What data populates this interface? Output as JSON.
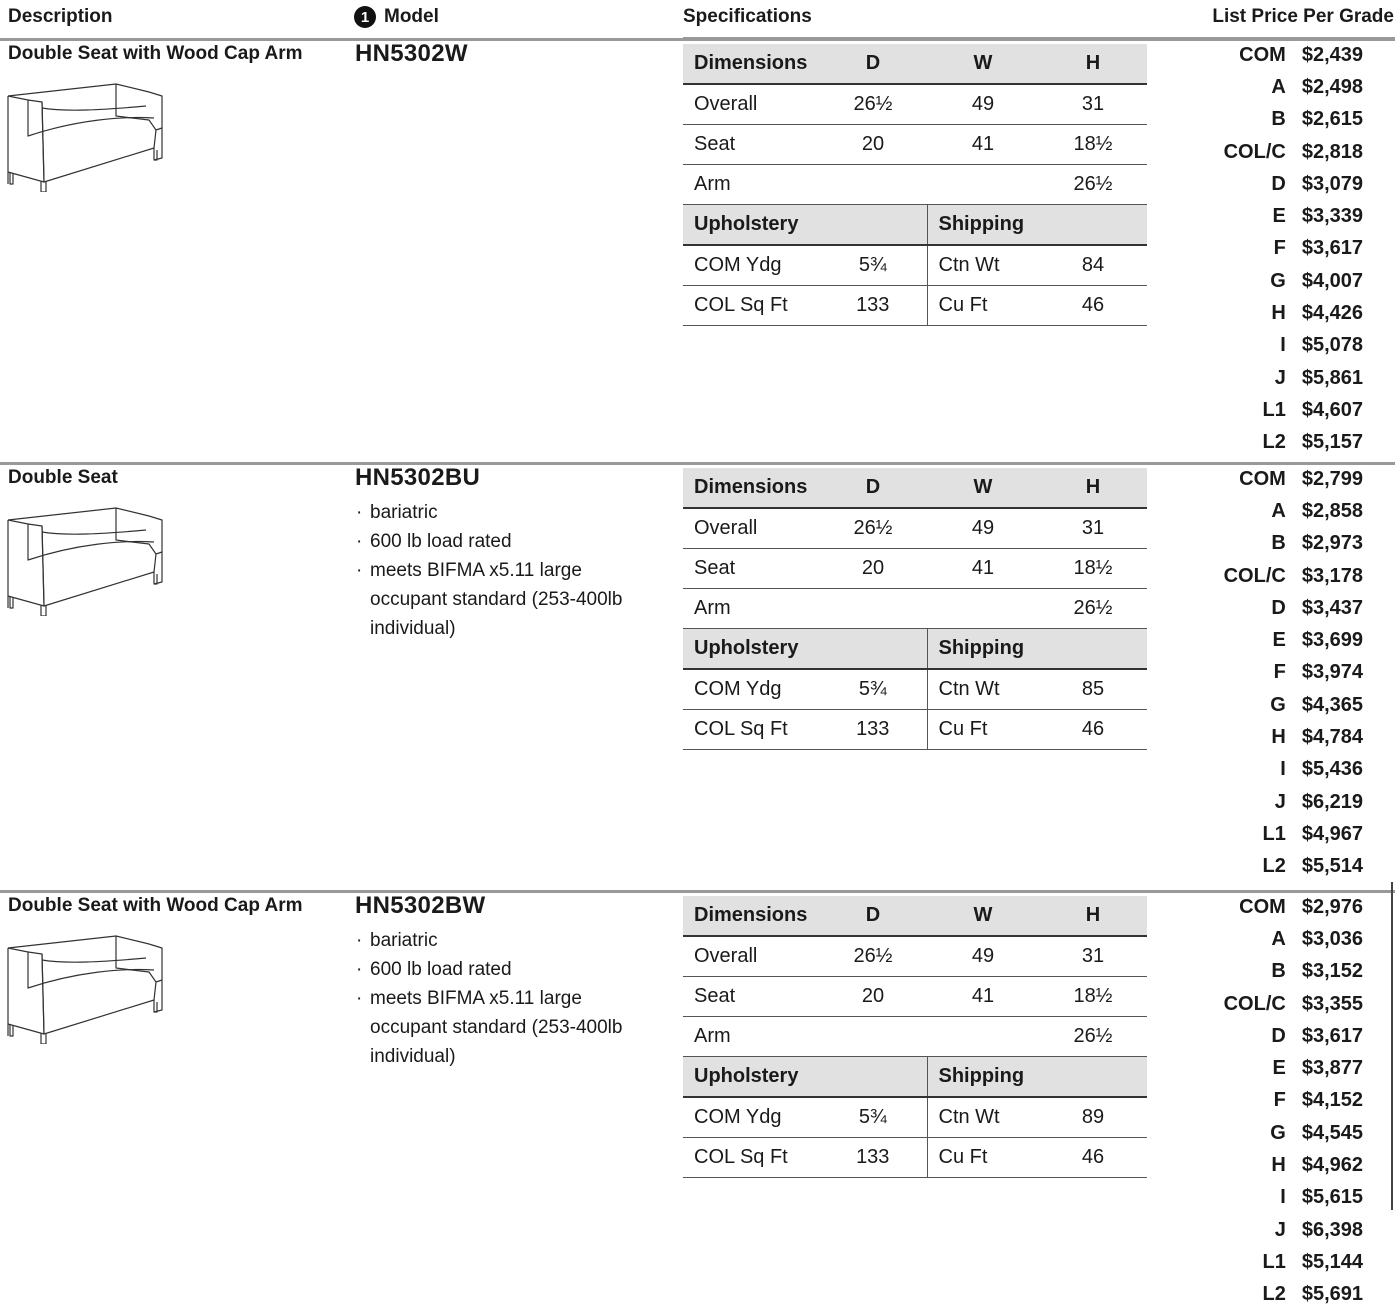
{
  "header": {
    "description": "Description",
    "model_badge": "1",
    "model": "Model",
    "specifications": "Specifications",
    "list_price": "List Price Per Grade"
  },
  "labels": {
    "dimensions": "Dimensions",
    "D": "D",
    "W": "W",
    "H": "H",
    "overall": "Overall",
    "seat": "Seat",
    "arm": "Arm",
    "upholstery": "Upholstery",
    "shipping": "Shipping",
    "com_ydg": "COM Ydg",
    "col_sqft": "COL Sq Ft",
    "ctn_wt": "Ctn Wt",
    "cu_ft": "Cu Ft"
  },
  "products": [
    {
      "description": "Double Seat with Wood Cap Arm",
      "model": "HN5302W",
      "notes": [],
      "overall": {
        "D": "26½",
        "W": "49",
        "H": "31"
      },
      "seat": {
        "D": "20",
        "W": "41",
        "H": "18½"
      },
      "arm": {
        "H": "26½"
      },
      "com_ydg": "5¾",
      "col_sqft": "133",
      "ctn_wt": "84",
      "cu_ft": "46",
      "prices": [
        {
          "grade": "COM",
          "price": "$2,439"
        },
        {
          "grade": "A",
          "price": "$2,498"
        },
        {
          "grade": "B",
          "price": "$2,615"
        },
        {
          "grade": "COL/C",
          "price": "$2,818"
        },
        {
          "grade": "D",
          "price": "$3,079"
        },
        {
          "grade": "E",
          "price": "$3,339"
        },
        {
          "grade": "F",
          "price": "$3,617"
        },
        {
          "grade": "G",
          "price": "$4,007"
        },
        {
          "grade": "H",
          "price": "$4,426"
        },
        {
          "grade": "I",
          "price": "$5,078"
        },
        {
          "grade": "J",
          "price": "$5,861"
        },
        {
          "grade": "L1",
          "price": "$4,607"
        },
        {
          "grade": "L2",
          "price": "$5,157"
        }
      ]
    },
    {
      "description": "Double Seat",
      "model": "HN5302BU",
      "notes": [
        "bariatric",
        "600 lb load rated",
        "meets BIFMA x5.11 large occupant standard (253-400lb individual)"
      ],
      "overall": {
        "D": "26½",
        "W": "49",
        "H": "31"
      },
      "seat": {
        "D": "20",
        "W": "41",
        "H": "18½"
      },
      "arm": {
        "H": "26½"
      },
      "com_ydg": "5¾",
      "col_sqft": "133",
      "ctn_wt": "85",
      "cu_ft": "46",
      "prices": [
        {
          "grade": "COM",
          "price": "$2,799"
        },
        {
          "grade": "A",
          "price": "$2,858"
        },
        {
          "grade": "B",
          "price": "$2,973"
        },
        {
          "grade": "COL/C",
          "price": "$3,178"
        },
        {
          "grade": "D",
          "price": "$3,437"
        },
        {
          "grade": "E",
          "price": "$3,699"
        },
        {
          "grade": "F",
          "price": "$3,974"
        },
        {
          "grade": "G",
          "price": "$4,365"
        },
        {
          "grade": "H",
          "price": "$4,784"
        },
        {
          "grade": "I",
          "price": "$5,436"
        },
        {
          "grade": "J",
          "price": "$6,219"
        },
        {
          "grade": "L1",
          "price": "$4,967"
        },
        {
          "grade": "L2",
          "price": "$5,514"
        }
      ]
    },
    {
      "description": "Double Seat with Wood Cap Arm",
      "model": "HN5302BW",
      "notes": [
        "bariatric",
        "600 lb load rated",
        "meets BIFMA x5.11 large occupant standard (253-400lb individual)"
      ],
      "overall": {
        "D": "26½",
        "W": "49",
        "H": "31"
      },
      "seat": {
        "D": "20",
        "W": "41",
        "H": "18½"
      },
      "arm": {
        "H": "26½"
      },
      "com_ydg": "5¾",
      "col_sqft": "133",
      "ctn_wt": "89",
      "cu_ft": "46",
      "prices": [
        {
          "grade": "COM",
          "price": "$2,976"
        },
        {
          "grade": "A",
          "price": "$3,036"
        },
        {
          "grade": "B",
          "price": "$3,152"
        },
        {
          "grade": "COL/C",
          "price": "$3,355"
        },
        {
          "grade": "D",
          "price": "$3,617"
        },
        {
          "grade": "E",
          "price": "$3,877"
        },
        {
          "grade": "F",
          "price": "$4,152"
        },
        {
          "grade": "G",
          "price": "$4,545"
        },
        {
          "grade": "H",
          "price": "$4,962"
        },
        {
          "grade": "I",
          "price": "$5,615"
        },
        {
          "grade": "J",
          "price": "$6,398"
        },
        {
          "grade": "L1",
          "price": "$5,144"
        },
        {
          "grade": "L2",
          "price": "$5,691"
        }
      ]
    }
  ]
}
